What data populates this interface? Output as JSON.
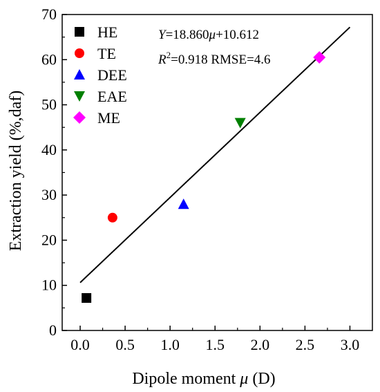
{
  "chart_data": {
    "type": "scatter",
    "xlabel_main": "Dipole moment ",
    "xlabel_var": "μ",
    "xlabel_unit": " (D)",
    "ylabel": "Extraction yield (%,daf)",
    "xlim": [
      -0.2,
      3.25
    ],
    "ylim": [
      0,
      70
    ],
    "xticks": [
      "0.0",
      "0.5",
      "1.0",
      "1.5",
      "2.0",
      "2.5",
      "3.0"
    ],
    "xtick_values": [
      0,
      0.5,
      1.0,
      1.5,
      2.0,
      2.5,
      3.0
    ],
    "yticks": [
      "0",
      "10",
      "20",
      "30",
      "40",
      "50",
      "60",
      "70"
    ],
    "ytick_values": [
      0,
      10,
      20,
      30,
      40,
      50,
      60,
      70
    ],
    "series": [
      {
        "name": "HE",
        "marker": "square",
        "color": "#000000",
        "x": 0.07,
        "y": 7.2
      },
      {
        "name": "TE",
        "marker": "circle",
        "color": "#ff0000",
        "x": 0.36,
        "y": 25.0
      },
      {
        "name": "DEE",
        "marker": "triangle-up",
        "color": "#0000ff",
        "x": 1.15,
        "y": 28.0
      },
      {
        "name": "EAE",
        "marker": "triangle-down",
        "color": "#008000",
        "x": 1.78,
        "y": 46.0
      },
      {
        "name": "ME",
        "marker": "diamond",
        "color": "#ff00ff",
        "x": 2.66,
        "y": 60.5
      }
    ],
    "fit_line": {
      "slope": 18.86,
      "intercept": 10.612,
      "x_start": 0.0,
      "x_end": 3.0,
      "color": "#000000"
    },
    "annotation": {
      "eq_var": "Y",
      "eq_rest1": "=18.860",
      "eq_mu": "μ",
      "eq_rest2": "+10.612",
      "r_var": "R",
      "r_sup": "2",
      "r_rest": "=0.918  RMSE=4.6"
    },
    "legend_position": "top-left",
    "grid": false
  }
}
